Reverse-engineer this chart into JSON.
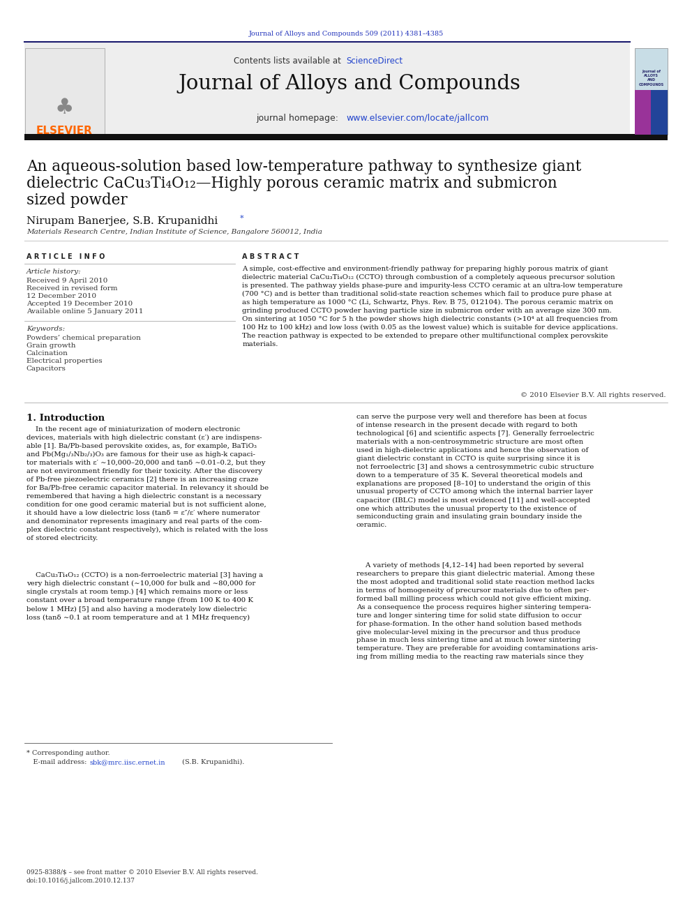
{
  "page_width": 9.92,
  "page_height": 13.23,
  "background_color": "#ffffff",
  "journal_ref_text": "Journal of Alloys and Compounds 509 (2011) 4381–4385",
  "journal_ref_color": "#2233bb",
  "science_direct_color": "#2244cc",
  "journal_title": "Journal of Alloys and Compounds",
  "homepage_url": "www.elsevier.com/locate/jallcom",
  "homepage_url_color": "#2244cc",
  "elsevier_color": "#ff6600",
  "affiliation": "Materials Research Centre, Indian Institute of Science, Bangalore 560012, India",
  "abstract_body": "A simple, cost-effective and environment-friendly pathway for preparing highly porous matrix of giant\ndielectric material CaCu₃Ti₄O₁₂ (CCTO) through combustion of a completely aqueous precursor solution\nis presented. The pathway yields phase-pure and impurity-less CCTO ceramic at an ultra-low temperature\n(700 °C) and is better than traditional solid-state reaction schemes which fail to produce pure phase at\nas high temperature as 1000 °C (Li, Schwartz, Phys. Rev. B 75, 012104). The porous ceramic matrix on\ngrinding produced CCTO powder having particle size in submicron order with an average size 300 nm.\nOn sintering at 1050 °C for 5 h the powder shows high dielectric constants (>10⁴ at all frequencies from\n100 Hz to 100 kHz) and low loss (with 0.05 as the lowest value) which is suitable for device applications.\nThe reaction pathway is expected to be extended to prepare other multifunctional complex perovskite\nmaterials.",
  "copyright_text": "© 2010 Elsevier B.V. All rights reserved.",
  "footer_issn": "0925-8388/$ – see front matter © 2010 Elsevier B.V. All rights reserved.",
  "footer_doi": "doi:10.1016/j.jallcom.2010.12.137"
}
